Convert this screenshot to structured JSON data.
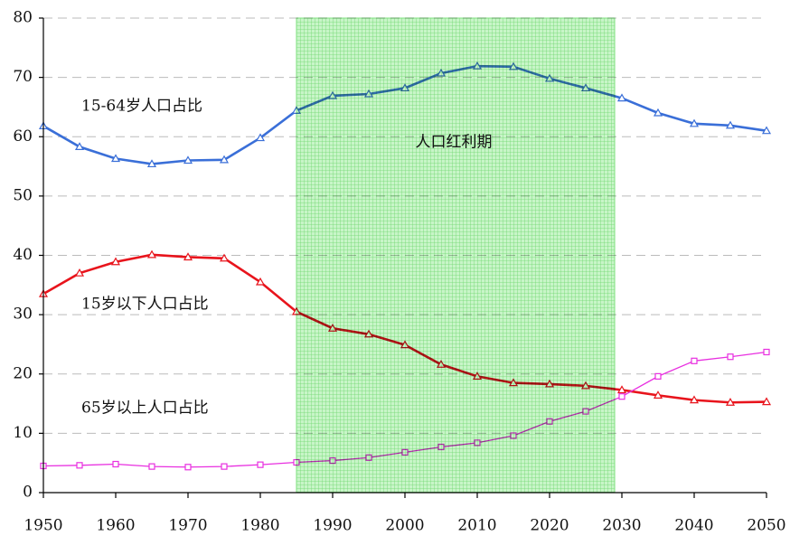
{
  "chart_data": {
    "type": "line",
    "x": [
      1950,
      1955,
      1960,
      1965,
      1970,
      1975,
      1980,
      1985,
      1990,
      1995,
      2000,
      2005,
      2010,
      2015,
      2020,
      2025,
      2030,
      2035,
      2040,
      2045,
      2050
    ],
    "series": [
      {
        "name": "15-64岁人口占比",
        "color": "#3a6fd8",
        "marker": "triangle",
        "values": [
          61.8,
          58.3,
          56.3,
          55.4,
          56.0,
          56.1,
          59.8,
          64.4,
          66.9,
          67.2,
          68.2,
          70.7,
          71.9,
          71.8,
          69.8,
          68.2,
          66.5,
          64.0,
          62.2,
          61.9,
          61.0
        ]
      },
      {
        "name": "15岁以下人口占比",
        "color": "#e8141c",
        "marker": "triangle",
        "values": [
          33.5,
          37.0,
          38.9,
          40.1,
          39.7,
          39.5,
          35.5,
          30.5,
          27.7,
          26.7,
          24.9,
          21.6,
          19.6,
          18.5,
          18.3,
          18.0,
          17.3,
          16.4,
          15.6,
          15.2,
          15.3
        ]
      },
      {
        "name": "65岁以上人口占比",
        "color": "#e830e0",
        "marker": "square",
        "values": [
          4.5,
          4.6,
          4.8,
          4.4,
          4.3,
          4.4,
          4.7,
          5.1,
          5.4,
          5.9,
          6.8,
          7.7,
          8.4,
          9.6,
          12.0,
          13.7,
          16.2,
          19.6,
          22.2,
          22.9,
          23.7
        ]
      }
    ],
    "highlight": {
      "x": [
        1985,
        2029
      ],
      "label": "人口红利期",
      "color": "#7ee07e"
    },
    "xlim": [
      1950,
      2050
    ],
    "xticks": [
      1950,
      1960,
      1970,
      1980,
      1990,
      2000,
      2010,
      2020,
      2030,
      2040,
      2050
    ],
    "ylim": [
      0,
      80
    ],
    "yticks": [
      0,
      10,
      20,
      30,
      40,
      50,
      60,
      70,
      80
    ],
    "grid": true
  }
}
